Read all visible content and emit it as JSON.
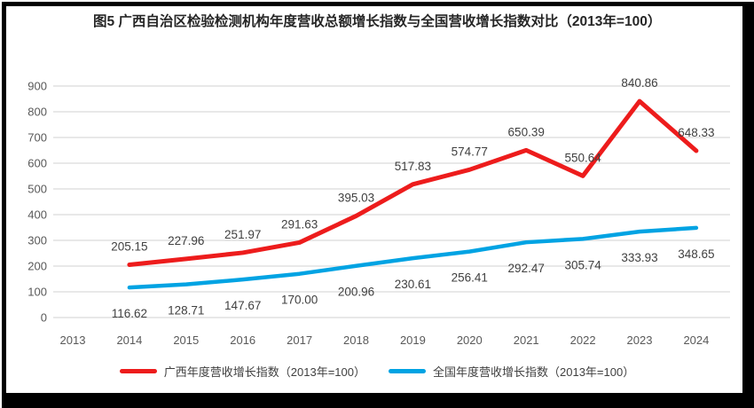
{
  "title": "图5  广西自治区检验检测机构年度营收总额增长指数与全国营收增长指数对比（2013年=100）",
  "chart_data": {
    "type": "line",
    "categories": [
      "2013",
      "2014",
      "2015",
      "2016",
      "2017",
      "2018",
      "2019",
      "2020",
      "2021",
      "2022",
      "2023",
      "2024"
    ],
    "series": [
      {
        "name": "广西年度营收增长指数（2013年=100）",
        "color": "#ed1c1c",
        "start_index": 1,
        "values": [
          205.15,
          227.96,
          251.97,
          291.63,
          395.03,
          517.83,
          574.77,
          650.39,
          550.64,
          840.86,
          648.33
        ],
        "labels": [
          "205.15",
          "227.96",
          "251.97",
          "291.63",
          "395.03",
          "517.83",
          "574.77",
          "650.39",
          "550.64",
          "840.86",
          "648.33"
        ],
        "label_position": "above"
      },
      {
        "name": "全国年度营收增长指数（2013年=100）",
        "color": "#00a3e3",
        "start_index": 1,
        "values": [
          116.62,
          128.71,
          147.67,
          170.0,
          200.96,
          230.61,
          256.41,
          292.47,
          305.74,
          333.93,
          348.65
        ],
        "labels": [
          "116.62",
          "128.71",
          "147.67",
          "170.00",
          "200.96",
          "230.61",
          "256.41",
          "292.47",
          "305.74",
          "333.93",
          "348.65"
        ],
        "label_position": "below"
      }
    ],
    "y_axis": {
      "min": 0,
      "max": 900,
      "step": 100,
      "ticks": [
        "0",
        "100",
        "200",
        "300",
        "400",
        "500",
        "600",
        "700",
        "800",
        "900"
      ]
    },
    "x_axis_label": "",
    "y_axis_label": "",
    "grid": true,
    "legend_position": "bottom",
    "colors": {
      "grid": "#d9d9d9",
      "axis_text": "#595959",
      "label_text": "#404040",
      "title_text": "#262626",
      "frame_border": "#000000"
    }
  }
}
